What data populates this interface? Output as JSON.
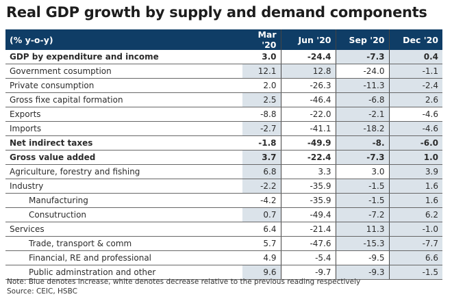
{
  "chart_data": {
    "type": "table",
    "title": "Real GDP growth by supply and demand components",
    "columns": [
      "(% y-o-y)",
      "Mar '20",
      "Jun '20",
      "Sep '20",
      "Dec '20"
    ],
    "increase_color": "#dbe3ea",
    "decrease_color": "#ffffff",
    "header_color": "#0f3d66",
    "rows": [
      {
        "label": "GDP by expenditure and income",
        "bold": true,
        "indent": false,
        "values": [
          "3.0",
          "-24.4",
          "-7.3",
          "0.4"
        ],
        "increase": [
          false,
          false,
          true,
          true
        ]
      },
      {
        "label": "Government cosumption",
        "bold": false,
        "indent": false,
        "values": [
          "12.1",
          "12.8",
          "-24.0",
          "-1.1"
        ],
        "increase": [
          true,
          true,
          false,
          true
        ]
      },
      {
        "label": "Private consumption",
        "bold": false,
        "indent": false,
        "values": [
          "2.0",
          "-26.3",
          "-11.3",
          "-2.4"
        ],
        "increase": [
          false,
          false,
          true,
          true
        ]
      },
      {
        "label": "Gross fixe capital formation",
        "bold": false,
        "indent": false,
        "values": [
          "2.5",
          "-46.4",
          "-6.8",
          "2.6"
        ],
        "increase": [
          true,
          false,
          true,
          true
        ]
      },
      {
        "label": "Exports",
        "bold": false,
        "indent": false,
        "values": [
          "-8.8",
          "-22.0",
          "-2.1",
          "-4.6"
        ],
        "increase": [
          false,
          false,
          true,
          false
        ]
      },
      {
        "label": "Imports",
        "bold": false,
        "indent": false,
        "values": [
          "-2.7",
          "-41.1",
          "-18.2",
          "-4.6"
        ],
        "increase": [
          true,
          false,
          true,
          true
        ]
      },
      {
        "label": "Net indirect taxes",
        "bold": true,
        "indent": false,
        "values": [
          "-1.8",
          "-49.9",
          "-8.",
          "-6.0"
        ],
        "increase": [
          false,
          false,
          true,
          true
        ]
      },
      {
        "label": "Gross value added",
        "bold": true,
        "indent": false,
        "values": [
          "3.7",
          "-22.4",
          "-7.3",
          "1.0"
        ],
        "increase": [
          true,
          false,
          true,
          true
        ]
      },
      {
        "label": "Agriculture, forestry and fishing",
        "bold": false,
        "indent": false,
        "values": [
          "6.8",
          "3.3",
          "3.0",
          "3.9"
        ],
        "increase": [
          true,
          false,
          false,
          true
        ]
      },
      {
        "label": "Industry",
        "bold": false,
        "indent": false,
        "values": [
          "-2.2",
          "-35.9",
          "-1.5",
          "1.6"
        ],
        "increase": [
          true,
          false,
          true,
          true
        ]
      },
      {
        "label": "Manufacturing",
        "bold": false,
        "indent": true,
        "values": [
          "-4.2",
          "-35.9",
          "-1.5",
          "1.6"
        ],
        "increase": [
          false,
          false,
          true,
          true
        ]
      },
      {
        "label": "Consutruction",
        "bold": false,
        "indent": true,
        "values": [
          "0.7",
          "-49.4",
          "-7.2",
          "6.2"
        ],
        "increase": [
          true,
          false,
          true,
          true
        ]
      },
      {
        "label": "Services",
        "bold": false,
        "indent": false,
        "values": [
          "6.4",
          "-21.4",
          "11.3",
          "-1.0"
        ],
        "increase": [
          false,
          false,
          true,
          true
        ]
      },
      {
        "label": "Trade, transport & comm",
        "bold": false,
        "indent": true,
        "values": [
          "5.7",
          "-47.6",
          "-15.3",
          "-7.7"
        ],
        "increase": [
          false,
          false,
          true,
          true
        ]
      },
      {
        "label": "Financial, RE and professional",
        "bold": false,
        "indent": true,
        "values": [
          "4.9",
          "-5.4",
          "-9.5",
          "6.6"
        ],
        "increase": [
          false,
          false,
          false,
          true
        ]
      },
      {
        "label": "Public adminstration and other",
        "bold": false,
        "indent": true,
        "values": [
          "9.6",
          "-9.7",
          "-9.3",
          "-1.5"
        ],
        "increase": [
          true,
          false,
          true,
          true
        ]
      }
    ],
    "note": "Note: Blue denotes increase, white denotes decrease relative to the previous reading respectively",
    "source": "Source: CEIC, HSBC"
  }
}
